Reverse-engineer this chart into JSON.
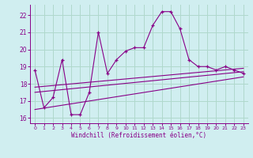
{
  "title": "",
  "xlabel": "Windchill (Refroidissement éolien,°C)",
  "bg_color": "#d0eef0",
  "grid_color": "#b0d8cc",
  "line_color": "#880088",
  "xlim": [
    -0.5,
    23.5
  ],
  "ylim": [
    15.7,
    22.6
  ],
  "xticks": [
    0,
    1,
    2,
    3,
    4,
    5,
    6,
    7,
    8,
    9,
    10,
    11,
    12,
    13,
    14,
    15,
    16,
    17,
    18,
    19,
    20,
    21,
    22,
    23
  ],
  "yticks": [
    16,
    17,
    18,
    19,
    20,
    21,
    22
  ],
  "series": {
    "main": {
      "x": [
        0,
        1,
        2,
        3,
        4,
        5,
        6,
        7,
        8,
        9,
        10,
        11,
        12,
        13,
        14,
        15,
        16,
        17,
        18,
        19,
        20,
        21,
        22,
        23
      ],
      "y": [
        18.8,
        16.6,
        17.2,
        19.4,
        16.2,
        16.2,
        17.5,
        21.0,
        18.6,
        19.4,
        19.9,
        20.1,
        20.1,
        21.4,
        22.2,
        22.2,
        21.2,
        19.4,
        19.0,
        19.0,
        18.8,
        19.0,
        18.8,
        18.6
      ]
    },
    "line1": {
      "x": [
        0,
        23
      ],
      "y": [
        17.8,
        18.9
      ]
    },
    "line2": {
      "x": [
        0,
        23
      ],
      "y": [
        17.5,
        18.7
      ]
    },
    "line3": {
      "x": [
        0,
        23
      ],
      "y": [
        16.5,
        18.4
      ]
    }
  }
}
